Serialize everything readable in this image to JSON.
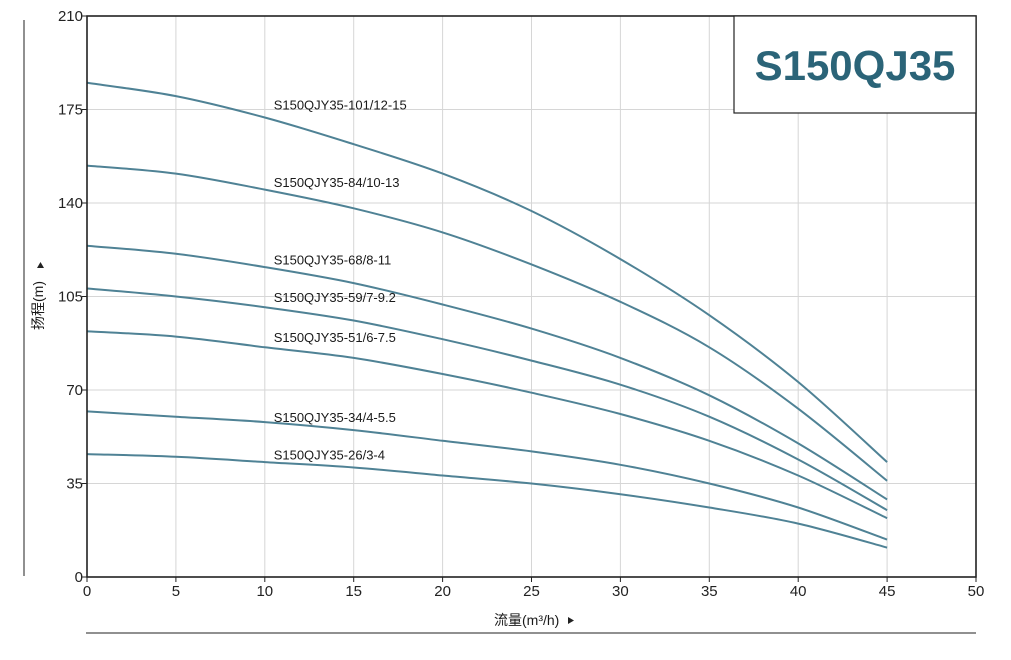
{
  "colors": {
    "curve": "#4f8295",
    "title": "#2b6478",
    "grid": "#d6d6d6",
    "axis": "#222222"
  },
  "chart_data": {
    "type": "line",
    "title": "S150QJ35",
    "xlabel": "流量(m³/h)",
    "ylabel": "扬程(m)",
    "xlim": [
      0,
      50
    ],
    "ylim": [
      0,
      210
    ],
    "xticks": [
      0,
      5,
      10,
      15,
      20,
      25,
      30,
      35,
      40,
      45,
      50
    ],
    "yticks": [
      0,
      35,
      70,
      105,
      140,
      175,
      210
    ],
    "grid": true,
    "series": [
      {
        "name": "S150QJY35-101/12-15",
        "x": [
          0,
          5,
          10,
          15,
          20,
          25,
          30,
          35,
          40,
          45
        ],
        "y": [
          185,
          180,
          172,
          162,
          151,
          137,
          119,
          98,
          73,
          43
        ],
        "label_at": [
          10.5,
          175
        ]
      },
      {
        "name": "S150QJY35-84/10-13",
        "x": [
          0,
          5,
          10,
          15,
          20,
          25,
          30,
          35,
          40,
          45
        ],
        "y": [
          154,
          151,
          145,
          138,
          129,
          117,
          103,
          86,
          63,
          36
        ],
        "label_at": [
          10.5,
          146
        ]
      },
      {
        "name": "S150QJY35-68/8-11",
        "x": [
          0,
          5,
          10,
          15,
          20,
          25,
          30,
          35,
          40,
          45
        ],
        "y": [
          124,
          121,
          116,
          110,
          102,
          93,
          82,
          68,
          50,
          29
        ],
        "label_at": [
          10.5,
          117
        ]
      },
      {
        "name": "S150QJY35-59/7-9.2",
        "x": [
          0,
          5,
          10,
          15,
          20,
          25,
          30,
          35,
          40,
          45
        ],
        "y": [
          108,
          105,
          101,
          96,
          89,
          81,
          72,
          60,
          44,
          25
        ],
        "label_at": [
          10.5,
          103
        ]
      },
      {
        "name": "S150QJY35-51/6-7.5",
        "x": [
          0,
          5,
          10,
          15,
          20,
          25,
          30,
          35,
          40,
          45
        ],
        "y": [
          92,
          90,
          86,
          82,
          76,
          69,
          61,
          51,
          38,
          22
        ],
        "label_at": [
          10.5,
          88
        ]
      },
      {
        "name": "S150QJY35-34/4-5.5",
        "x": [
          0,
          5,
          10,
          15,
          20,
          25,
          30,
          35,
          40,
          45
        ],
        "y": [
          62,
          60,
          58,
          55,
          51,
          47,
          42,
          35,
          26,
          14
        ],
        "label_at": [
          10.5,
          58
        ]
      },
      {
        "name": "S150QJY35-26/3-4",
        "x": [
          0,
          5,
          10,
          15,
          20,
          25,
          30,
          35,
          40,
          45
        ],
        "y": [
          46,
          45,
          43,
          41,
          38,
          35,
          31,
          26,
          20,
          11
        ],
        "label_at": [
          10.5,
          44
        ]
      }
    ]
  }
}
